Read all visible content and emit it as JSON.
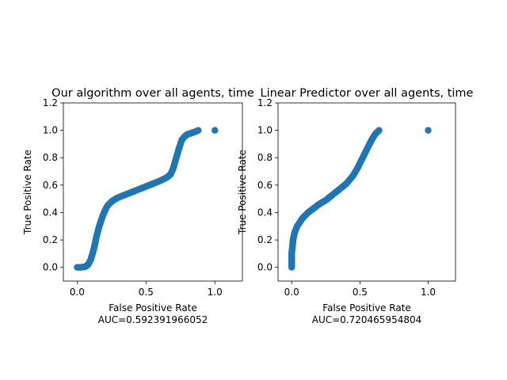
{
  "chart_data": [
    {
      "type": "scatter",
      "title": "Our algorithm over all agents, time",
      "xlabel": "False Positive Rate",
      "xlabel_sub": "AUC=0.592391966052",
      "ylabel": "True Positive Rate",
      "xlim": [
        -0.1,
        1.2
      ],
      "ylim": [
        -0.1,
        1.2
      ],
      "xticks": [
        0.0,
        0.5,
        1.0
      ],
      "yticks": [
        0.0,
        0.2,
        0.4,
        0.6,
        0.8,
        1.0,
        1.2
      ],
      "grid": false,
      "color": "#1f77b4",
      "points": [
        [
          0.0,
          0.0
        ],
        [
          0.03,
          0.0
        ],
        [
          0.06,
          0.005
        ],
        [
          0.08,
          0.02
        ],
        [
          0.1,
          0.06
        ],
        [
          0.12,
          0.13
        ],
        [
          0.14,
          0.22
        ],
        [
          0.16,
          0.3
        ],
        [
          0.18,
          0.36
        ],
        [
          0.2,
          0.41
        ],
        [
          0.22,
          0.45
        ],
        [
          0.25,
          0.48
        ],
        [
          0.28,
          0.5
        ],
        [
          0.3,
          0.51
        ],
        [
          0.35,
          0.53
        ],
        [
          0.4,
          0.55
        ],
        [
          0.45,
          0.57
        ],
        [
          0.5,
          0.59
        ],
        [
          0.55,
          0.61
        ],
        [
          0.6,
          0.63
        ],
        [
          0.65,
          0.655
        ],
        [
          0.68,
          0.68
        ],
        [
          0.7,
          0.73
        ],
        [
          0.72,
          0.8
        ],
        [
          0.74,
          0.87
        ],
        [
          0.76,
          0.93
        ],
        [
          0.78,
          0.955
        ],
        [
          0.8,
          0.97
        ],
        [
          0.83,
          0.98
        ],
        [
          0.86,
          0.99
        ],
        [
          0.88,
          1.0
        ],
        [
          1.0,
          1.0
        ]
      ]
    },
    {
      "type": "scatter",
      "title": "Linear Predictor over all agents, time",
      "xlabel": "False Positive Rate",
      "xlabel_sub": "AUC=0.720465954804",
      "ylabel": "True Positive Rate",
      "xlim": [
        -0.1,
        1.2
      ],
      "ylim": [
        -0.1,
        1.2
      ],
      "xticks": [
        0.0,
        0.5,
        1.0
      ],
      "yticks": [
        0.0,
        0.2,
        0.4,
        0.6,
        0.8,
        1.0,
        1.2
      ],
      "grid": false,
      "color": "#1f77b4",
      "points": [
        [
          0.0,
          0.0
        ],
        [
          0.0,
          0.05
        ],
        [
          0.0,
          0.1
        ],
        [
          0.005,
          0.15
        ],
        [
          0.01,
          0.2
        ],
        [
          0.02,
          0.25
        ],
        [
          0.04,
          0.3
        ],
        [
          0.06,
          0.33
        ],
        [
          0.08,
          0.36
        ],
        [
          0.12,
          0.4
        ],
        [
          0.16,
          0.43
        ],
        [
          0.2,
          0.46
        ],
        [
          0.25,
          0.49
        ],
        [
          0.3,
          0.53
        ],
        [
          0.35,
          0.57
        ],
        [
          0.4,
          0.61
        ],
        [
          0.45,
          0.67
        ],
        [
          0.48,
          0.72
        ],
        [
          0.5,
          0.76
        ],
        [
          0.52,
          0.8
        ],
        [
          0.55,
          0.86
        ],
        [
          0.58,
          0.92
        ],
        [
          0.61,
          0.97
        ],
        [
          0.64,
          1.0
        ],
        [
          1.0,
          1.0
        ]
      ]
    }
  ]
}
